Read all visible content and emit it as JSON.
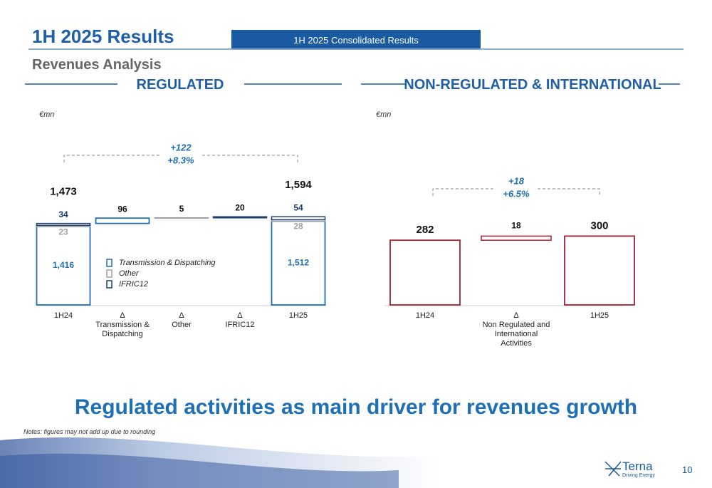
{
  "header": {
    "title": "1H 2025 Results",
    "tab": "1H 2025 Consolidated Results",
    "subtitle": "Revenues Analysis"
  },
  "chart_data": [
    {
      "type": "waterfall",
      "title": "REGULATED",
      "unit": "€mn",
      "delta_symbol": "∆",
      "categories": [
        "1H24",
        "Transmission & Dispatching",
        "Other",
        "IFRIC12",
        "1H25"
      ],
      "series": [
        {
          "name": "Transmission & Dispatching",
          "color": "#1f6fb5",
          "values": [
            1416,
            96,
            null,
            null,
            1512
          ],
          "value_labels": [
            "1,416",
            "96",
            null,
            null,
            "1,512"
          ]
        },
        {
          "name": "Other",
          "color": "#a0a0a0",
          "values": [
            23,
            null,
            5,
            null,
            28
          ],
          "value_labels": [
            "23",
            null,
            "5",
            null,
            "28"
          ]
        },
        {
          "name": "IFRIC12",
          "color": "#1b3d6e",
          "values": [
            34,
            null,
            null,
            20,
            54
          ],
          "value_labels": [
            "34",
            null,
            null,
            "20",
            "54"
          ]
        }
      ],
      "totals": [
        1473,
        null,
        null,
        null,
        1594
      ],
      "total_labels": [
        "1,473",
        null,
        null,
        null,
        "1,594"
      ],
      "annotation": {
        "change": "+122",
        "percent": "+8.3%"
      },
      "ylim": [
        0,
        1700
      ],
      "legend": true
    },
    {
      "type": "waterfall",
      "title": "NON-REGULATED & INTERNATIONAL",
      "unit": "€mn",
      "delta_symbol": "∆",
      "categories": [
        "1H24",
        "Non Regulated and International Activities",
        "1H25"
      ],
      "values": [
        282,
        18,
        300
      ],
      "color": "#9b2335",
      "annotation": {
        "change": "+18",
        "percent": "+6.5%"
      },
      "ylim": [
        0,
        410
      ],
      "legend": false
    }
  ],
  "tagline": "Regulated activities as main driver for revenues growth",
  "note": "Notes: figures may not add up due to rounding",
  "footer": {
    "logo": "Terna",
    "logo_tagline": "Driving Energy",
    "page": "10"
  }
}
